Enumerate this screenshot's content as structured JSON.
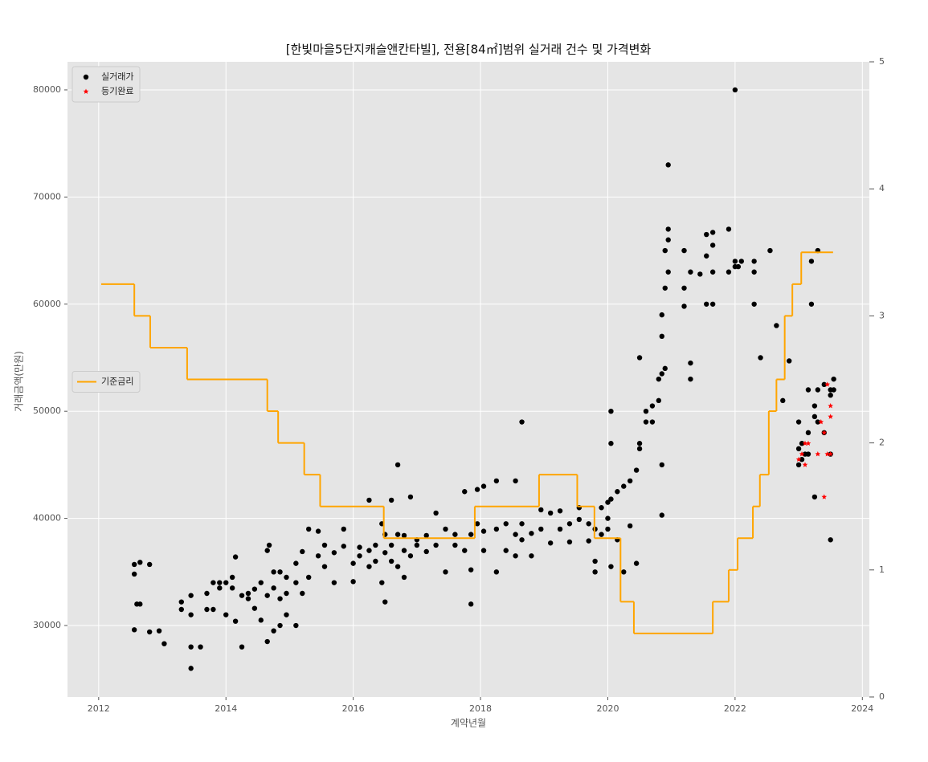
{
  "chart_data": {
    "type": "scatter",
    "title": "[한빛마을5단지캐슬앤칸타빌], 전용[84㎡]범위 실거래 건수 및 가격변화",
    "x_label": "계약년월",
    "y_label": "거래금액(만원)",
    "xlim": [
      2011.51,
      2024.11
    ],
    "ylim": [
      23330,
      82620
    ],
    "y2lim": [
      0,
      5
    ],
    "xticks": [
      2012,
      2014,
      2016,
      2018,
      2020,
      2022,
      2024
    ],
    "yticks": [
      30000,
      40000,
      50000,
      60000,
      70000,
      80000
    ],
    "y2ticks": [
      0,
      1,
      2,
      3,
      4,
      5
    ],
    "grid": true,
    "legend": "upper left",
    "y2_legend": "center left",
    "series": [
      {
        "name": "실거래가",
        "type": "scatter",
        "marker": "circle",
        "color": "#000000",
        "x": [
          2012.56,
          2012.56,
          2012.6,
          2012.56,
          2012.65,
          2012.65,
          2012.8,
          2012.8,
          2012.95,
          2013.03,
          2013.3,
          2013.3,
          2013.45,
          2013.45,
          2013.45,
          2013.45,
          2013.6,
          2013.7,
          2013.7,
          2013.8,
          2013.8,
          2013.9,
          2013.9,
          2014.0,
          2014.0,
          2014.1,
          2014.1,
          2014.15,
          2014.15,
          2014.25,
          2014.25,
          2014.35,
          2014.35,
          2014.45,
          2014.45,
          2014.55,
          2014.55,
          2014.65,
          2014.65,
          2014.65,
          2014.68,
          2014.75,
          2014.75,
          2014.75,
          2014.85,
          2014.85,
          2014.85,
          2014.95,
          2014.95,
          2014.95,
          2015.1,
          2015.1,
          2015.1,
          2015.2,
          2015.2,
          2015.3,
          2015.3,
          2015.45,
          2015.45,
          2015.55,
          2015.55,
          2015.7,
          2015.7,
          2015.85,
          2015.85,
          2016.0,
          2016.0,
          2016.1,
          2016.1,
          2016.25,
          2016.25,
          2016.25,
          2016.35,
          2016.35,
          2016.45,
          2016.45,
          2016.5,
          2016.5,
          2016.5,
          2016.6,
          2016.6,
          2016.6,
          2016.7,
          2016.7,
          2016.7,
          2016.8,
          2016.8,
          2016.8,
          2016.9,
          2016.9,
          2017.0,
          2017.0,
          2017.15,
          2017.15,
          2017.3,
          2017.3,
          2017.45,
          2017.45,
          2017.6,
          2017.6,
          2017.75,
          2017.75,
          2017.85,
          2017.85,
          2017.85,
          2017.95,
          2017.95,
          2018.05,
          2018.05,
          2018.05,
          2018.25,
          2018.25,
          2018.25,
          2018.4,
          2018.4,
          2018.55,
          2018.55,
          2018.55,
          2018.65,
          2018.65,
          2018.65,
          2018.8,
          2018.8,
          2018.95,
          2018.95,
          2019.1,
          2019.1,
          2019.25,
          2019.25,
          2019.4,
          2019.4,
          2019.55,
          2019.55,
          2019.7,
          2019.7,
          2019.8,
          2019.8,
          2019.8,
          2019.9,
          2019.9,
          2020.0,
          2020.0,
          2020.0,
          2020.05,
          2020.05,
          2020.05,
          2020.05,
          2020.15,
          2020.15,
          2020.25,
          2020.25,
          2020.35,
          2020.35,
          2020.45,
          2020.45,
          2020.5,
          2020.5,
          2020.5,
          2020.6,
          2020.6,
          2020.7,
          2020.7,
          2020.8,
          2020.8,
          2020.85,
          2020.85,
          2020.85,
          2020.85,
          2020.85,
          2020.9,
          2020.9,
          2020.9,
          2020.95,
          2020.95,
          2020.95,
          2020.95,
          2021.2,
          2021.2,
          2021.2,
          2021.3,
          2021.3,
          2021.3,
          2021.45,
          2021.55,
          2021.55,
          2021.55,
          2021.65,
          2021.65,
          2021.65,
          2021.65,
          2021.9,
          2021.9,
          2022.0,
          2022.0,
          2022.0,
          2022.05,
          2022.1,
          2022.3,
          2022.3,
          2022.3,
          2022.4,
          2022.55,
          2022.65,
          2022.75,
          2022.85,
          2023.0,
          2023.0,
          2023.0,
          2023.05,
          2023.05,
          2023.1,
          2023.15,
          2023.15,
          2023.15,
          2023.2,
          2023.2,
          2023.25,
          2023.25,
          2023.25,
          2023.3,
          2023.3,
          2023.3,
          2023.4,
          2023.4,
          2023.5,
          2023.5,
          2023.5,
          2023.5,
          2023.55,
          2023.55
        ],
        "values": [
          35700,
          34800,
          32000,
          29600,
          35900,
          32000,
          35700,
          29400,
          29500,
          28300,
          31500,
          32200,
          32800,
          31000,
          28000,
          26000,
          28000,
          31500,
          33000,
          34000,
          31500,
          33500,
          34000,
          31000,
          34000,
          33500,
          34500,
          36400,
          30400,
          32800,
          28000,
          32500,
          33000,
          31600,
          33400,
          30500,
          34000,
          28500,
          37000,
          32800,
          37500,
          29500,
          33500,
          35000,
          30000,
          32500,
          35000,
          33000,
          34500,
          31000,
          30000,
          34000,
          35800,
          36900,
          33000,
          39000,
          34500,
          36500,
          38800,
          37500,
          35500,
          34000,
          36800,
          39000,
          37400,
          34100,
          35800,
          36500,
          37300,
          35500,
          37000,
          41700,
          36000,
          37500,
          39500,
          34000,
          32200,
          36800,
          38500,
          36000,
          37500,
          41700,
          45000,
          35500,
          38500,
          37000,
          34500,
          38400,
          42000,
          36500,
          37500,
          38000,
          36900,
          38400,
          40500,
          37500,
          35000,
          39000,
          38500,
          37500,
          42500,
          37000,
          32000,
          35200,
          38500,
          42700,
          39500,
          43000,
          37000,
          38800,
          43500,
          35000,
          39000,
          37000,
          39500,
          43500,
          36500,
          38500,
          49000,
          38000,
          39500,
          36500,
          38600,
          39000,
          40800,
          37700,
          40500,
          39000,
          40700,
          37800,
          39500,
          39900,
          41000,
          37900,
          39500,
          35000,
          36000,
          39000,
          41000,
          38500,
          39000,
          41500,
          40000,
          47000,
          50000,
          35500,
          41800,
          42500,
          38000,
          35000,
          43000,
          39300,
          43500,
          35800,
          44500,
          47000,
          55000,
          46500,
          49000,
          50000,
          50500,
          49000,
          53000,
          51000,
          57000,
          59000,
          45000,
          40300,
          53500,
          61500,
          65000,
          54000,
          67000,
          73000,
          63000,
          66000,
          59800,
          61500,
          65000,
          63000,
          53000,
          54500,
          62800,
          60000,
          64500,
          66500,
          60000,
          63000,
          66700,
          65500,
          67000,
          63000,
          63500,
          80000,
          64000,
          63500,
          64000,
          63000,
          64000,
          60000,
          55000,
          65000,
          58000,
          51000,
          54700,
          49000,
          46500,
          45000,
          47000,
          45500,
          46000,
          46000,
          52000,
          48000,
          60000,
          64000,
          49500,
          42000,
          50500,
          65000,
          52000,
          49000,
          48000,
          52500,
          52000,
          51500,
          46000,
          38000,
          53000,
          52000
        ]
      },
      {
        "name": "등기완료",
        "type": "scatter",
        "marker": "star",
        "color": "#ff0000",
        "x": [
          2023.0,
          2023.05,
          2023.1,
          2023.1,
          2023.15,
          2023.3,
          2023.35,
          2023.4,
          2023.4,
          2023.45,
          2023.45,
          2023.5,
          2023.5,
          2023.5
        ],
        "values": [
          45500,
          46000,
          47000,
          45000,
          47000,
          46000,
          49000,
          48000,
          42000,
          46000,
          52500,
          50500,
          49500,
          46000
        ]
      },
      {
        "name": "기준금리",
        "type": "step",
        "axis": "y2",
        "color": "#ffa500",
        "x": [
          2012.04,
          2012.56,
          2012.81,
          2013.39,
          2014.65,
          2014.82,
          2015.23,
          2015.48,
          2016.48,
          2017.91,
          2018.92,
          2019.52,
          2019.79,
          2020.2,
          2020.41,
          2021.65,
          2021.9,
          2022.04,
          2022.28,
          2022.39,
          2022.53,
          2022.65,
          2022.78,
          2022.9,
          2023.04,
          2023.54
        ],
        "values": [
          3.25,
          3.0,
          2.75,
          2.5,
          2.25,
          2.0,
          1.75,
          1.5,
          1.25,
          1.5,
          1.75,
          1.5,
          1.25,
          0.75,
          0.5,
          0.75,
          1.0,
          1.25,
          1.5,
          1.75,
          2.25,
          2.5,
          3.0,
          3.25,
          3.5,
          3.5
        ]
      }
    ]
  }
}
